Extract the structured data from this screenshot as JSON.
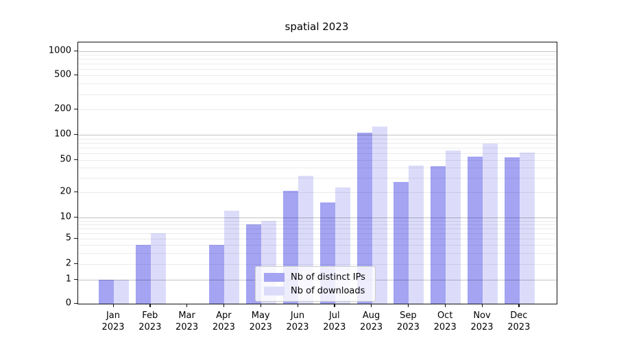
{
  "title": "spatial 2023",
  "legend": {
    "series1_label": "Nb of distinct IPs",
    "series2_label": "Nb of downloads"
  },
  "colors": {
    "distinct_ips": "#a4a4f3",
    "downloads": "#dcdcfa",
    "major_grid": "rgba(0,0,0,0.24)",
    "minor_grid": "rgba(0,0,0,0.08)"
  },
  "y_axis": {
    "tick_labels": [
      "0",
      "1",
      "2",
      "5",
      "10",
      "20",
      "50",
      "100",
      "200",
      "500",
      "1000"
    ]
  },
  "x_axis": {
    "month_labels": [
      "Jan",
      "Feb",
      "Mar",
      "Apr",
      "May",
      "Jun",
      "Jul",
      "Aug",
      "Sep",
      "Oct",
      "Nov",
      "Dec"
    ],
    "year": "2023"
  },
  "chart_data": {
    "type": "bar",
    "title": "spatial 2023",
    "categories": [
      "Jan 2023",
      "Feb 2023",
      "Mar 2023",
      "Apr 2023",
      "May 2023",
      "Jun 2023",
      "Jul 2023",
      "Aug 2023",
      "Sep 2023",
      "Oct 2023",
      "Nov 2023",
      "Dec 2023"
    ],
    "series": [
      {
        "name": "Nb of distinct IPs",
        "values": [
          1,
          4,
          0,
          4,
          8,
          21,
          15,
          105,
          27,
          42,
          55,
          54
        ]
      },
      {
        "name": "Nb of downloads",
        "values": [
          1,
          6,
          0,
          12,
          9,
          32,
          23,
          125,
          43,
          65,
          78,
          61
        ]
      }
    ],
    "xlabel": "",
    "ylabel": "",
    "yscale": "symlog-like (0,1,2,5,10,20,50,100,200,500,1000)",
    "y_ticks": [
      0,
      1,
      2,
      5,
      10,
      20,
      50,
      100,
      200,
      500,
      1000
    ],
    "ylim": [
      0,
      1400
    ],
    "grid": "horizontal, major and minor",
    "legend_position": "inside plot, lower center"
  }
}
